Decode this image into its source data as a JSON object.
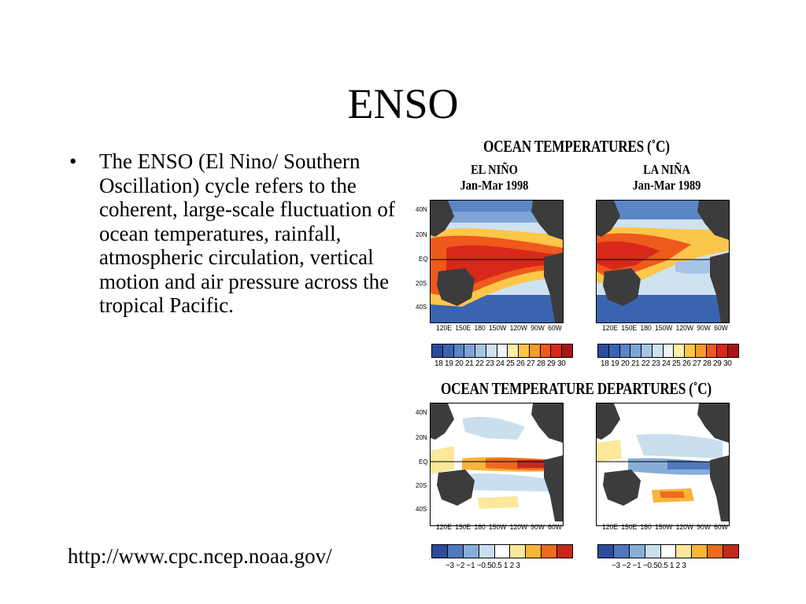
{
  "slide": {
    "title": "ENSO",
    "bullet_char": "•",
    "bullet_text": "The ENSO (El Nino/ Southern Oscillation) cycle refers to the coherent, large-scale fluctuation of ocean temperatures, rainfall, atmospheric circulation, vertical motion and air pressure across the tropical Pacific.",
    "source_url": "http://www.cpc.ncep.noaa.gov/"
  },
  "figure": {
    "top_title": "OCEAN TEMPERATURES (˚C)",
    "bottom_title": "OCEAN TEMPERATURE DEPARTURES (˚C)",
    "left_panel": {
      "name": "EL NIÑO",
      "period": "Jan-Mar 1998"
    },
    "right_panel": {
      "name": "LA NIÑA",
      "period": "Jan-Mar 1989"
    },
    "lat_labels": [
      "40N",
      "20N",
      "EQ",
      "20S",
      "40S"
    ],
    "lon_labels": "120E 150E 180 150W 120W 90W 60W",
    "temp_scale_labels": "18 19 20 21 22 23 24 25 26 27 28 29 30",
    "temp_scale_colors": [
      "#2b4c9b",
      "#3a64b0",
      "#5a86c6",
      "#7ea4d6",
      "#a6c4e4",
      "#cfe2f0",
      "#eef5f8",
      "#fbf0a8",
      "#fcc64a",
      "#f79a2a",
      "#ee5a1c",
      "#d8281a",
      "#a8151a"
    ],
    "dep_scale_labels": "−3 −2 −1 −0.50.5  1  2  3",
    "dep_scale_colors": [
      "#2b4c9b",
      "#4f78bd",
      "#88aed8",
      "#c9dfee",
      "#ffffff",
      "#fbe89a",
      "#f9b43a",
      "#ee6a1e",
      "#c8281c"
    ],
    "colors": {
      "land": "#3c3c3c",
      "warm": "#e63c14",
      "cool": "#2f5aa8"
    }
  }
}
